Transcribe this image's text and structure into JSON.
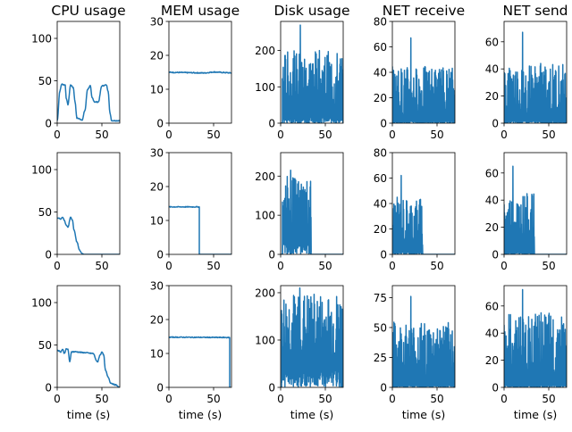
{
  "chart_data": {
    "type": "line",
    "line_color": "#1f77b4",
    "grid": false,
    "columns": [
      "CPU usage",
      "MEM usage",
      "Disk usage",
      "NET receive",
      "NET send"
    ],
    "xlabel": "time (s)",
    "xlim": [
      0,
      70
    ],
    "xticks": [
      0,
      50
    ],
    "panels": [
      {
        "row": 0,
        "col": 0,
        "title": "CPU usage",
        "ylim": [
          0,
          120
        ],
        "yticks": [
          0,
          50,
          100
        ],
        "style": "smooth",
        "points": [
          [
            0,
            3
          ],
          [
            3,
            38
          ],
          [
            5,
            46
          ],
          [
            9,
            45
          ],
          [
            10,
            30
          ],
          [
            12,
            22
          ],
          [
            15,
            45
          ],
          [
            18,
            42
          ],
          [
            20,
            25
          ],
          [
            22,
            6
          ],
          [
            28,
            4
          ],
          [
            31,
            15
          ],
          [
            34,
            40
          ],
          [
            37,
            44
          ],
          [
            39,
            30
          ],
          [
            42,
            25
          ],
          [
            46,
            25
          ],
          [
            50,
            44
          ],
          [
            55,
            45
          ],
          [
            57,
            38
          ],
          [
            59,
            12
          ],
          [
            61,
            3
          ],
          [
            70,
            3
          ]
        ]
      },
      {
        "row": 0,
        "col": 1,
        "title": "MEM usage",
        "ylim": [
          0,
          30
        ],
        "yticks": [
          0,
          10,
          20,
          30
        ],
        "style": "flat",
        "points": [
          [
            0,
            15
          ],
          [
            20,
            14.9
          ],
          [
            40,
            14.8
          ],
          [
            50,
            15.1
          ],
          [
            70,
            14.8
          ]
        ],
        "noise": 0.15
      },
      {
        "row": 0,
        "col": 2,
        "title": "Disk usage",
        "ylim": [
          0,
          280
        ],
        "yticks": [
          0,
          100,
          200
        ],
        "style": "spiky",
        "points": [
          [
            0,
            0
          ],
          [
            70,
            0
          ]
        ],
        "spike_range": [
          20,
          200
        ],
        "spike_start": 2,
        "spike_end": 70,
        "max_spike": 270
      },
      {
        "row": 0,
        "col": 3,
        "title": "NET receive",
        "ylim": [
          0,
          80
        ],
        "yticks": [
          0,
          20,
          40,
          60,
          80
        ],
        "style": "spiky",
        "points": [
          [
            0,
            0
          ],
          [
            70,
            0
          ]
        ],
        "spike_range": [
          2,
          45
        ],
        "spike_start": 0,
        "spike_end": 70,
        "max_spike": 67
      },
      {
        "row": 0,
        "col": 4,
        "title": "NET send",
        "ylim": [
          0,
          75
        ],
        "yticks": [
          0,
          20,
          40,
          60
        ],
        "style": "spiky",
        "points": [
          [
            0,
            0
          ],
          [
            70,
            0
          ]
        ],
        "spike_range": [
          2,
          45
        ],
        "spike_start": 0,
        "spike_end": 70,
        "max_spike": 67
      },
      {
        "row": 1,
        "col": 0,
        "title": "",
        "ylim": [
          0,
          120
        ],
        "yticks": [
          0,
          50,
          100
        ],
        "style": "smooth",
        "points": [
          [
            0,
            43
          ],
          [
            4,
            42
          ],
          [
            6,
            44
          ],
          [
            8,
            40
          ],
          [
            10,
            35
          ],
          [
            12,
            32
          ],
          [
            15,
            44
          ],
          [
            17,
            40
          ],
          [
            19,
            28
          ],
          [
            22,
            15
          ],
          [
            25,
            5
          ],
          [
            28,
            1
          ],
          [
            30,
            0
          ],
          [
            70,
            0
          ]
        ]
      },
      {
        "row": 1,
        "col": 1,
        "title": "",
        "ylim": [
          0,
          30
        ],
        "yticks": [
          0,
          10,
          20,
          30
        ],
        "style": "drop",
        "points": [
          [
            0,
            14
          ],
          [
            34,
            14
          ],
          [
            34,
            0
          ],
          [
            70,
            0
          ]
        ]
      },
      {
        "row": 1,
        "col": 2,
        "title": "",
        "ylim": [
          0,
          260
        ],
        "yticks": [
          0,
          100,
          200
        ],
        "style": "spiky",
        "points": [
          [
            0,
            0
          ],
          [
            70,
            0
          ]
        ],
        "spike_range": [
          40,
          200
        ],
        "spike_start": 2,
        "spike_end": 34,
        "max_spike": 215
      },
      {
        "row": 1,
        "col": 3,
        "title": "",
        "ylim": [
          0,
          80
        ],
        "yticks": [
          0,
          20,
          40,
          60,
          80
        ],
        "style": "spiky",
        "points": [
          [
            0,
            0
          ],
          [
            70,
            0
          ]
        ],
        "spike_range": [
          2,
          45
        ],
        "spike_start": 0,
        "spike_end": 34,
        "max_spike": 62
      },
      {
        "row": 1,
        "col": 4,
        "title": "",
        "ylim": [
          0,
          75
        ],
        "yticks": [
          0,
          20,
          40,
          60
        ],
        "style": "spiky",
        "points": [
          [
            0,
            0
          ],
          [
            70,
            0
          ]
        ],
        "spike_range": [
          2,
          45
        ],
        "spike_start": 0,
        "spike_end": 34,
        "max_spike": 65
      },
      {
        "row": 2,
        "col": 0,
        "title": "",
        "ylim": [
          0,
          120
        ],
        "yticks": [
          0,
          50,
          100
        ],
        "style": "smooth",
        "points": [
          [
            0,
            44
          ],
          [
            4,
            42
          ],
          [
            6,
            45
          ],
          [
            8,
            40
          ],
          [
            10,
            45
          ],
          [
            12,
            45
          ],
          [
            14,
            30
          ],
          [
            16,
            42
          ],
          [
            20,
            42
          ],
          [
            30,
            41
          ],
          [
            40,
            40
          ],
          [
            45,
            30
          ],
          [
            48,
            38
          ],
          [
            50,
            42
          ],
          [
            52,
            38
          ],
          [
            54,
            20
          ],
          [
            57,
            12
          ],
          [
            60,
            5
          ],
          [
            65,
            3
          ],
          [
            70,
            0
          ]
        ]
      },
      {
        "row": 2,
        "col": 1,
        "title": "",
        "ylim": [
          0,
          30
        ],
        "yticks": [
          0,
          10,
          20,
          30
        ],
        "style": "drop",
        "points": [
          [
            0,
            14.8
          ],
          [
            68,
            14.7
          ],
          [
            68,
            0
          ],
          [
            69,
            0
          ]
        ]
      },
      {
        "row": 2,
        "col": 2,
        "title": "",
        "ylim": [
          0,
          215
        ],
        "yticks": [
          0,
          100,
          200
        ],
        "style": "spiky",
        "points": [
          [
            0,
            0
          ],
          [
            70,
            0
          ]
        ],
        "spike_range": [
          40,
          200
        ],
        "spike_start": 1,
        "spike_end": 70,
        "max_spike": 210
      },
      {
        "row": 2,
        "col": 3,
        "title": "",
        "ylim": [
          0,
          85
        ],
        "yticks": [
          0,
          25,
          50,
          75
        ],
        "style": "spiky",
        "points": [
          [
            0,
            0
          ],
          [
            70,
            0
          ]
        ],
        "spike_range": [
          2,
          55
        ],
        "spike_start": 0,
        "spike_end": 70,
        "max_spike": 76
      },
      {
        "row": 2,
        "col": 4,
        "title": "",
        "ylim": [
          0,
          75
        ],
        "yticks": [
          0,
          20,
          40,
          60
        ],
        "style": "spiky",
        "points": [
          [
            0,
            0
          ],
          [
            70,
            0
          ]
        ],
        "spike_range": [
          2,
          55
        ],
        "spike_start": 0,
        "spike_end": 70,
        "max_spike": 72
      }
    ]
  }
}
